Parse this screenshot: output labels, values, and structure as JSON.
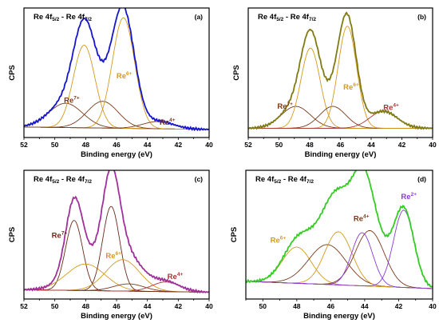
{
  "chart_data": [
    {
      "type": "line",
      "panel_label": "(a)",
      "title": {
        "base": "Re 4f",
        "sub1": "5/2",
        "mid": " - Re 4f",
        "sub2": "7/2"
      },
      "xlabel": "Binding energy (eV)",
      "ylabel": "CPS",
      "xlim": [
        52,
        40
      ],
      "ylim": [
        0,
        1
      ],
      "x_ticks": [
        52,
        50,
        48,
        46,
        44,
        42,
        40
      ],
      "background": [
        0.06,
        0.04
      ],
      "envelope_color": "#1515cc",
      "components": [
        {
          "name": "Re",
          "charge": "7+",
          "center": 49.3,
          "height": 0.2,
          "width": 1.1,
          "color": "#7a3a1a",
          "label_x": 48.9,
          "label_y": 0.26
        },
        {
          "name": "",
          "charge": "",
          "center": 48.1,
          "height": 0.68,
          "width": 0.7,
          "color": "#d49a1c"
        },
        {
          "name": "Re",
          "charge": "6+",
          "center": 46.9,
          "height": 0.22,
          "width": 1.0,
          "color": "#7a3a1a"
        },
        {
          "name": "Re",
          "charge": "6+",
          "center": 45.55,
          "height": 0.91,
          "width": 0.72,
          "color": "#d49a1c",
          "label_x": 45.5,
          "label_y": 0.46
        },
        {
          "name": "Re",
          "charge": "4+",
          "center": 43.3,
          "height": 0.06,
          "width": 1.0,
          "color": "#7a3a1a",
          "label_x": 42.7,
          "label_y": 0.08
        }
      ]
    },
    {
      "type": "line",
      "panel_label": "(b)",
      "title": {
        "base": "Re 4f",
        "sub1": "5/2",
        "mid": " - Re 4f",
        "sub2": "7/2"
      },
      "xlabel": "Binding energy (eV)",
      "ylabel": "CPS",
      "xlim": [
        52,
        40
      ],
      "ylim": [
        0,
        1
      ],
      "x_ticks": [
        52,
        50,
        48,
        46,
        44,
        42,
        40
      ],
      "background": [
        0.05,
        0.05
      ],
      "envelope_color": "#807a14",
      "components": [
        {
          "name": "Re",
          "charge": "7+",
          "center": 48.9,
          "height": 0.18,
          "width": 0.95,
          "color": "#7a3a1a",
          "label_x": 49.6,
          "label_y": 0.21
        },
        {
          "name": "",
          "charge": "",
          "center": 47.95,
          "height": 0.66,
          "width": 0.62,
          "color": "#d49a1c"
        },
        {
          "name": "",
          "charge": "",
          "center": 46.5,
          "height": 0.18,
          "width": 0.85,
          "color": "#7a3a1a"
        },
        {
          "name": "Re",
          "charge": "6+",
          "center": 45.55,
          "height": 0.84,
          "width": 0.6,
          "color": "#d49a1c",
          "label_x": 45.3,
          "label_y": 0.37
        },
        {
          "name": "Re",
          "charge": "4+",
          "center": 43.2,
          "height": 0.14,
          "width": 0.9,
          "color": "#aa3333",
          "label_x": 42.7,
          "label_y": 0.2
        }
      ]
    },
    {
      "type": "line",
      "panel_label": "(c)",
      "title": {
        "base": "Re 4f",
        "sub1": "5/2",
        "mid": " - Re 4f",
        "sub2": "7/2"
      },
      "xlabel": "Binding energy (eV)",
      "ylabel": "CPS",
      "xlim": [
        52,
        40
      ],
      "ylim": [
        0,
        1
      ],
      "x_ticks": [
        52,
        50,
        48,
        46,
        44,
        42,
        40
      ],
      "background": [
        0.05,
        0.03
      ],
      "envelope_color": "#a0309a",
      "components": [
        {
          "name": "Re",
          "charge": "7+",
          "center": 48.75,
          "height": 0.58,
          "width": 0.55,
          "color": "#6a2a18",
          "label_x": 49.7,
          "label_y": 0.48
        },
        {
          "name": "",
          "charge": "",
          "center": 48.0,
          "height": 0.22,
          "width": 1.25,
          "color": "#d49a1c"
        },
        {
          "name": "",
          "charge": "",
          "center": 46.35,
          "height": 0.7,
          "width": 0.55,
          "color": "#6a2a18"
        },
        {
          "name": "Re",
          "charge": "6+",
          "center": 45.6,
          "height": 0.26,
          "width": 1.1,
          "color": "#d49a1c",
          "label_x": 46.2,
          "label_y": 0.31
        },
        {
          "name": "",
          "charge": "",
          "center": 45.2,
          "height": 0.06,
          "width": 1.0,
          "color": "#7a3a1a"
        },
        {
          "name": "Re",
          "charge": "4+",
          "center": 42.8,
          "height": 0.08,
          "width": 0.9,
          "color": "#aa3333",
          "label_x": 42.2,
          "label_y": 0.14
        }
      ]
    },
    {
      "type": "line",
      "panel_label": "(d)",
      "title": {
        "base": "Re 4f",
        "sub1": "5/2",
        "mid": " - Re 4f",
        "sub2": "7/2"
      },
      "xlabel": "Binding energy (eV)",
      "ylabel": "CPS",
      "xlim": [
        51,
        40
      ],
      "ylim": [
        0,
        1
      ],
      "x_ticks": [
        50,
        48,
        46,
        44,
        42,
        40
      ],
      "background": [
        0.12,
        0.06
      ],
      "envelope_color": "#33cc22",
      "components": [
        {
          "name": "Re",
          "charge": "6+",
          "center": 48.0,
          "height": 0.3,
          "width": 0.85,
          "color": "#d49a1c",
          "label_x": 49.1,
          "label_y": 0.44
        },
        {
          "name": "",
          "charge": "",
          "center": 46.2,
          "height": 0.33,
          "width": 1.1,
          "color": "#7a3a1a"
        },
        {
          "name": "",
          "charge": "",
          "center": 45.55,
          "height": 0.44,
          "width": 0.8,
          "color": "#d49a1c"
        },
        {
          "name": "Re",
          "charge": "4+",
          "center": 43.7,
          "height": 0.46,
          "width": 0.85,
          "color": "#7a3a1a",
          "label_x": 44.2,
          "label_y": 0.62
        },
        {
          "name": "",
          "charge": "",
          "center": 44.15,
          "height": 0.44,
          "width": 0.62,
          "color": "#8a3ad8"
        },
        {
          "name": "Re",
          "charge": "2+",
          "center": 41.7,
          "height": 0.64,
          "width": 0.6,
          "color": "#8a3ad8",
          "label_x": 41.4,
          "label_y": 0.8
        }
      ]
    }
  ]
}
